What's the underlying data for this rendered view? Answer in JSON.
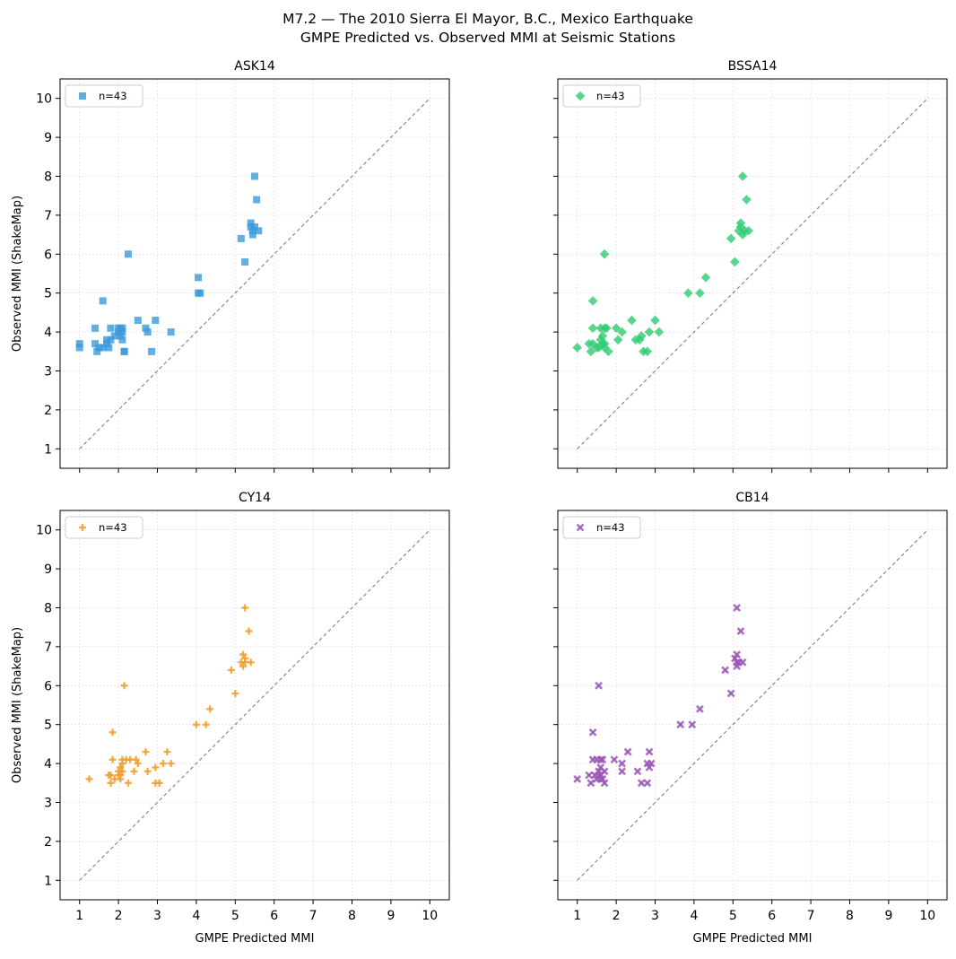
{
  "title_line1": "M7.2 — The 2010 Sierra El Mayor, B.C., Mexico Earthquake",
  "title_line2": "GMPE Predicted vs. Observed MMI at Seismic Stations",
  "shared_xlabel": "GMPE Predicted MMI",
  "shared_ylabel": "Observed MMI (ShakeMap)",
  "chart_data": [
    {
      "type": "scatter",
      "title": "ASK14",
      "xlim": [
        0.5,
        10.5
      ],
      "ylim": [
        0.5,
        10.5
      ],
      "xticks": [
        1,
        2,
        3,
        4,
        5,
        6,
        7,
        8,
        9,
        10
      ],
      "yticks": [
        1,
        2,
        3,
        4,
        5,
        6,
        7,
        8,
        9,
        10
      ],
      "grid": true,
      "legend_position": "top-left",
      "reference_line": [
        [
          1,
          1
        ],
        [
          10,
          10
        ]
      ],
      "series": [
        {
          "name": "n=43",
          "marker": "square",
          "color": "#3a9ad9",
          "points": [
            [
              1.0,
              3.6
            ],
            [
              1.0,
              3.7
            ],
            [
              1.4,
              4.1
            ],
            [
              1.4,
              3.7
            ],
            [
              1.45,
              3.5
            ],
            [
              1.5,
              3.6
            ],
            [
              1.6,
              4.8
            ],
            [
              1.6,
              3.6
            ],
            [
              1.7,
              3.8
            ],
            [
              1.7,
              3.7
            ],
            [
              1.75,
              3.6
            ],
            [
              1.8,
              4.1
            ],
            [
              1.8,
              3.8
            ],
            [
              1.9,
              3.9
            ],
            [
              2.0,
              4.1
            ],
            [
              2.0,
              4.0
            ],
            [
              2.05,
              4.1
            ],
            [
              2.05,
              3.9
            ],
            [
              2.1,
              4.0
            ],
            [
              2.1,
              3.8
            ],
            [
              2.1,
              4.1
            ],
            [
              2.15,
              3.5
            ],
            [
              2.15,
              3.5
            ],
            [
              2.25,
              6.0
            ],
            [
              2.5,
              4.3
            ],
            [
              2.7,
              4.1
            ],
            [
              2.75,
              4.0
            ],
            [
              2.85,
              3.5
            ],
            [
              2.95,
              4.3
            ],
            [
              3.35,
              4.0
            ],
            [
              4.05,
              5.4
            ],
            [
              4.05,
              5.0
            ],
            [
              4.1,
              5.0
            ],
            [
              5.15,
              6.4
            ],
            [
              5.25,
              5.8
            ],
            [
              5.4,
              6.8
            ],
            [
              5.4,
              6.7
            ],
            [
              5.45,
              6.6
            ],
            [
              5.45,
              6.5
            ],
            [
              5.5,
              8.0
            ],
            [
              5.55,
              7.4
            ],
            [
              5.6,
              6.6
            ],
            [
              5.5,
              6.7
            ]
          ]
        }
      ]
    },
    {
      "type": "scatter",
      "title": "BSSA14",
      "xlim": [
        0.5,
        10.5
      ],
      "ylim": [
        0.5,
        10.5
      ],
      "xticks": [
        1,
        2,
        3,
        4,
        5,
        6,
        7,
        8,
        9,
        10
      ],
      "yticks": [
        1,
        2,
        3,
        4,
        5,
        6,
        7,
        8,
        9,
        10
      ],
      "grid": true,
      "legend_position": "top-left",
      "reference_line": [
        [
          1,
          1
        ],
        [
          10,
          10
        ]
      ],
      "series": [
        {
          "name": "n=43",
          "marker": "diamond",
          "color": "#2ecc71",
          "points": [
            [
              1.0,
              3.6
            ],
            [
              1.3,
              3.7
            ],
            [
              1.35,
              3.5
            ],
            [
              1.4,
              4.8
            ],
            [
              1.4,
              4.1
            ],
            [
              1.4,
              3.7
            ],
            [
              1.55,
              3.6
            ],
            [
              1.6,
              3.8
            ],
            [
              1.6,
              4.1
            ],
            [
              1.65,
              3.7
            ],
            [
              1.65,
              3.9
            ],
            [
              1.7,
              6.0
            ],
            [
              1.7,
              4.1
            ],
            [
              1.7,
              3.6
            ],
            [
              1.75,
              4.1
            ],
            [
              1.8,
              3.5
            ],
            [
              2.0,
              4.1
            ],
            [
              2.05,
              3.8
            ],
            [
              2.15,
              4.0
            ],
            [
              2.4,
              4.3
            ],
            [
              2.5,
              3.8
            ],
            [
              2.65,
              3.9
            ],
            [
              2.7,
              3.5
            ],
            [
              2.8,
              3.5
            ],
            [
              2.85,
              4.0
            ],
            [
              3.0,
              4.3
            ],
            [
              3.1,
              4.0
            ],
            [
              3.85,
              5.0
            ],
            [
              4.15,
              5.0
            ],
            [
              4.3,
              5.4
            ],
            [
              4.95,
              6.4
            ],
            [
              5.05,
              5.8
            ],
            [
              5.15,
              6.6
            ],
            [
              5.2,
              6.8
            ],
            [
              5.2,
              6.7
            ],
            [
              5.25,
              8.0
            ],
            [
              5.25,
              6.5
            ],
            [
              5.35,
              7.4
            ],
            [
              5.4,
              6.6
            ],
            [
              5.3,
              6.6
            ],
            [
              1.7,
              3.7
            ],
            [
              2.6,
              3.8
            ],
            [
              1.5,
              3.6
            ]
          ]
        }
      ]
    },
    {
      "type": "scatter",
      "title": "CY14",
      "xlim": [
        0.5,
        10.5
      ],
      "ylim": [
        0.5,
        10.5
      ],
      "xticks": [
        1,
        2,
        3,
        4,
        5,
        6,
        7,
        8,
        9,
        10
      ],
      "yticks": [
        1,
        2,
        3,
        4,
        5,
        6,
        7,
        8,
        9,
        10
      ],
      "grid": true,
      "legend_position": "top-left",
      "reference_line": [
        [
          1,
          1
        ],
        [
          10,
          10
        ]
      ],
      "series": [
        {
          "name": "n=43",
          "marker": "plus",
          "color": "#f0a030",
          "points": [
            [
              1.25,
              3.6
            ],
            [
              1.75,
              3.7
            ],
            [
              1.8,
              3.7
            ],
            [
              1.8,
              3.5
            ],
            [
              1.85,
              4.8
            ],
            [
              1.85,
              4.1
            ],
            [
              1.9,
              3.6
            ],
            [
              2.0,
              3.7
            ],
            [
              2.0,
              3.8
            ],
            [
              2.05,
              3.6
            ],
            [
              2.05,
              3.9
            ],
            [
              2.1,
              4.1
            ],
            [
              2.1,
              3.8
            ],
            [
              2.1,
              4.0
            ],
            [
              2.15,
              6.0
            ],
            [
              2.2,
              4.1
            ],
            [
              2.25,
              3.5
            ],
            [
              2.3,
              4.1
            ],
            [
              2.4,
              3.8
            ],
            [
              2.45,
              4.1
            ],
            [
              2.5,
              4.0
            ],
            [
              2.7,
              4.3
            ],
            [
              2.75,
              3.8
            ],
            [
              2.95,
              3.9
            ],
            [
              2.95,
              3.5
            ],
            [
              3.05,
              3.5
            ],
            [
              3.15,
              4.0
            ],
            [
              3.25,
              4.3
            ],
            [
              3.35,
              4.0
            ],
            [
              4.0,
              5.0
            ],
            [
              4.25,
              5.0
            ],
            [
              4.35,
              5.4
            ],
            [
              4.9,
              6.4
            ],
            [
              5.0,
              5.8
            ],
            [
              5.15,
              6.6
            ],
            [
              5.2,
              6.8
            ],
            [
              5.2,
              6.5
            ],
            [
              5.25,
              8.0
            ],
            [
              5.25,
              6.6
            ],
            [
              5.35,
              7.4
            ],
            [
              5.4,
              6.6
            ],
            [
              5.25,
              6.7
            ],
            [
              2.05,
              3.7
            ]
          ]
        }
      ]
    },
    {
      "type": "scatter",
      "title": "CB14",
      "xlim": [
        0.5,
        10.5
      ],
      "ylim": [
        0.5,
        10.5
      ],
      "xticks": [
        1,
        2,
        3,
        4,
        5,
        6,
        7,
        8,
        9,
        10
      ],
      "yticks": [
        1,
        2,
        3,
        4,
        5,
        6,
        7,
        8,
        9,
        10
      ],
      "grid": true,
      "legend_position": "top-left",
      "reference_line": [
        [
          1,
          1
        ],
        [
          10,
          10
        ]
      ],
      "series": [
        {
          "name": "n=43",
          "marker": "x",
          "color": "#9b59b6",
          "points": [
            [
              1.0,
              3.6
            ],
            [
              1.3,
              3.7
            ],
            [
              1.35,
              3.5
            ],
            [
              1.4,
              4.8
            ],
            [
              1.4,
              4.1
            ],
            [
              1.45,
              3.7
            ],
            [
              1.5,
              3.6
            ],
            [
              1.5,
              4.1
            ],
            [
              1.55,
              6.0
            ],
            [
              1.55,
              3.8
            ],
            [
              1.6,
              4.1
            ],
            [
              1.6,
              3.9
            ],
            [
              1.6,
              3.7
            ],
            [
              1.65,
              4.1
            ],
            [
              1.65,
              3.6
            ],
            [
              1.7,
              3.5
            ],
            [
              1.7,
              3.8
            ],
            [
              1.95,
              4.1
            ],
            [
              2.15,
              4.0
            ],
            [
              2.15,
              3.8
            ],
            [
              2.3,
              4.3
            ],
            [
              2.55,
              3.8
            ],
            [
              2.65,
              3.5
            ],
            [
              2.8,
              3.5
            ],
            [
              2.8,
              4.0
            ],
            [
              2.85,
              3.9
            ],
            [
              2.85,
              4.3
            ],
            [
              2.9,
              4.0
            ],
            [
              3.65,
              5.0
            ],
            [
              3.95,
              5.0
            ],
            [
              4.15,
              5.4
            ],
            [
              4.8,
              6.4
            ],
            [
              4.95,
              5.8
            ],
            [
              5.05,
              6.7
            ],
            [
              5.1,
              6.8
            ],
            [
              5.1,
              6.5
            ],
            [
              5.1,
              8.0
            ],
            [
              5.15,
              6.6
            ],
            [
              5.2,
              7.4
            ],
            [
              5.25,
              6.6
            ],
            [
              5.1,
              6.6
            ],
            [
              1.55,
              3.7
            ],
            [
              1.6,
              3.6
            ]
          ]
        }
      ]
    }
  ]
}
